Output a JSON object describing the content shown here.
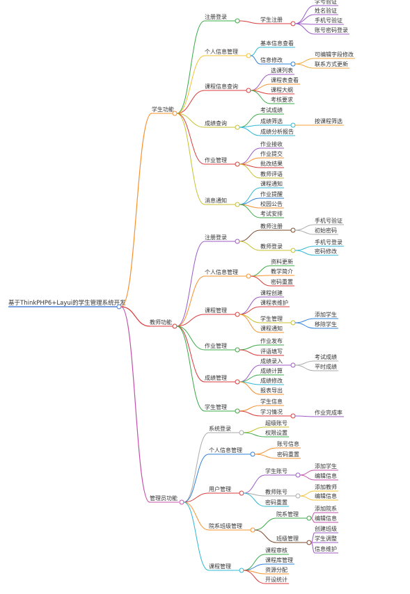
{
  "root": {
    "label": "基于ThinkPHP6+Layui的学生管理系统开发",
    "children": [
      {
        "label": "学生功能",
        "color": "#f7902d",
        "children": [
          {
            "label": "注册登录",
            "color": "#3aa946",
            "children": [
              {
                "label": "学生注册",
                "color": "#d93a3a",
                "children": [
                  {
                    "label": "学号验证",
                    "color": "#9b59c6"
                  },
                  {
                    "label": "姓名验证",
                    "color": "#9b59c6"
                  },
                  {
                    "label": "手机号验证",
                    "color": "#9b59c6"
                  },
                  {
                    "label": "账号密码登录",
                    "color": "#9b59c6"
                  }
                ]
              }
            ]
          },
          {
            "label": "个人信息管理",
            "color": "#f2c12e",
            "children": [
              {
                "label": "基本信息查看",
                "color": "#2fb8d4"
              },
              {
                "label": "信息修改",
                "color": "#2f7fd9",
                "children": [
                  {
                    "label": "可编辑字段修改",
                    "color": "#f2a531"
                  },
                  {
                    "label": "联系方式更新",
                    "color": "#f2a531"
                  }
                ]
              }
            ]
          },
          {
            "label": "课程信息查询",
            "color": "#d93a3a",
            "children": [
              {
                "label": "选课列表",
                "color": "#9b59c6"
              },
              {
                "label": "课程表查看",
                "color": "#f7902d"
              },
              {
                "label": "课程大纲",
                "color": "#d93a3a"
              },
              {
                "label": "考核要求",
                "color": "#3aa946"
              }
            ]
          },
          {
            "label": "成绩查询",
            "color": "#c7c12e",
            "children": [
              {
                "label": "考试成绩",
                "color": "#3aa946"
              },
              {
                "label": "成绩筛选",
                "color": "#2fb8d4",
                "children": [
                  {
                    "label": "按课程筛选",
                    "color": "#f2a531"
                  }
                ]
              },
              {
                "label": "成绩分析报告",
                "color": "#2fb8d4"
              }
            ]
          },
          {
            "label": "作业管理",
            "color": "#d93a3a",
            "children": [
              {
                "label": "作业接收",
                "color": "#9b59c6"
              },
              {
                "label": "作业提交",
                "color": "#f7902d"
              },
              {
                "label": "批改结果",
                "color": "#d93a3a"
              },
              {
                "label": "教师评语",
                "color": "#c7c12e"
              }
            ]
          },
          {
            "label": "消息通知",
            "color": "#c7c12e",
            "children": [
              {
                "label": "课程通知",
                "color": "#2fb8d4"
              },
              {
                "label": "作业提醒",
                "color": "#2f7fd9"
              },
              {
                "label": "校园公告",
                "color": "#f7902d"
              },
              {
                "label": "考试安排",
                "color": "#3aa946"
              }
            ]
          }
        ]
      },
      {
        "label": "教师功能",
        "color": "#d93a3a",
        "children": [
          {
            "label": "注册登录",
            "color": "#9b59c6",
            "children": [
              {
                "label": "教师注册",
                "color": "#7a4a2a",
                "children": [
                  {
                    "label": "手机号验证",
                    "color": "#aaaaaa"
                  },
                  {
                    "label": "初始密码",
                    "color": "#aaaaaa"
                  }
                ]
              },
              {
                "label": "教师登录",
                "color": "#c7c12e",
                "children": [
                  {
                    "label": "手机号登录",
                    "color": "#2fb8d4"
                  },
                  {
                    "label": "密码修改",
                    "color": "#2fb8d4"
                  }
                ]
              }
            ]
          },
          {
            "label": "个人信息管理",
            "color": "#f7902d",
            "children": [
              {
                "label": "资料更新",
                "color": "#3aa946"
              },
              {
                "label": "教学简介",
                "color": "#f7902d"
              },
              {
                "label": "密码重置",
                "color": "#d93a3a"
              }
            ]
          },
          {
            "label": "课程管理",
            "color": "#d93a3a",
            "children": [
              {
                "label": "课程创建",
                "color": "#9b59c6"
              },
              {
                "label": "课程表维护",
                "color": "#d93a3a"
              },
              {
                "label": "学生管理",
                "color": "#c7c12e",
                "children": [
                  {
                    "label": "添加学生",
                    "color": "#2f7fd9"
                  },
                  {
                    "label": "移除学生",
                    "color": "#2f7fd9"
                  }
                ]
              },
              {
                "label": "课程通知",
                "color": "#f7902d"
              }
            ]
          },
          {
            "label": "作业管理",
            "color": "#3aa946",
            "children": [
              {
                "label": "作业发布",
                "color": "#3aa946"
              },
              {
                "label": "评语填写",
                "color": "#d93a3a"
              }
            ]
          },
          {
            "label": "成绩管理",
            "color": "#d93a3a",
            "children": [
              {
                "label": "成绩录入",
                "color": "#9b59c6",
                "children": [
                  {
                    "label": "考试成绩",
                    "color": "#aaaaaa"
                  },
                  {
                    "label": "平时成绩",
                    "color": "#aaaaaa"
                  }
                ]
              },
              {
                "label": "成绩计算",
                "color": "#3aa946"
              },
              {
                "label": "成绩修改",
                "color": "#2fb8d4"
              },
              {
                "label": "报表导出",
                "color": "#f7902d"
              }
            ]
          },
          {
            "label": "学生管理",
            "color": "#3aa946",
            "children": [
              {
                "label": "学生信息",
                "color": "#f7902d"
              },
              {
                "label": "学习情况",
                "color": "#d93a3a",
                "children": [
                  {
                    "label": "作业完成率",
                    "color": "#9b59c6"
                  }
                ]
              }
            ]
          }
        ]
      },
      {
        "label": "管理员功能",
        "color": "#c24fa8",
        "children": [
          {
            "label": "系统登录",
            "color": "#aaaaaa",
            "children": [
              {
                "label": "超级账号",
                "color": "#c7c12e"
              },
              {
                "label": "权限设置",
                "color": "#3aa946"
              }
            ]
          },
          {
            "label": "个人信息管理",
            "color": "#2f7fd9",
            "children": [
              {
                "label": "账号信息",
                "color": "#f7902d"
              },
              {
                "label": "密码重置",
                "color": "#f7902d"
              }
            ]
          },
          {
            "label": "用户管理",
            "color": "#d93a3a",
            "children": [
              {
                "label": "学生账号",
                "color": "#9b59c6",
                "children": [
                  {
                    "label": "添加学生",
                    "color": "#c24fa8"
                  },
                  {
                    "label": "编辑信息",
                    "color": "#c24fa8"
                  }
                ]
              },
              {
                "label": "教师账号",
                "color": "#aaaaaa",
                "children": [
                  {
                    "label": "添加教师",
                    "color": "#f2c12e"
                  },
                  {
                    "label": "编辑信息",
                    "color": "#f2c12e"
                  }
                ]
              },
              {
                "label": "密码重置",
                "color": "#2fb8d4"
              }
            ]
          },
          {
            "label": "院系班级管理",
            "color": "#f7902d",
            "children": [
              {
                "label": "院系管理",
                "color": "#3aa946",
                "children": [
                  {
                    "label": "添加院系",
                    "color": "#c24fa8"
                  },
                  {
                    "label": "编辑信息",
                    "color": "#c24fa8"
                  }
                ]
              },
              {
                "label": "班级管理",
                "color": "#7a4a2a",
                "children": [
                  {
                    "label": "创建班级",
                    "color": "#9b59c6"
                  },
                  {
                    "label": "学生调整",
                    "color": "#9b59c6"
                  },
                  {
                    "label": "信息维护",
                    "color": "#9b59c6"
                  }
                ]
              }
            ]
          },
          {
            "label": "课程管理",
            "color": "#2fb8d4",
            "children": [
              {
                "label": "课程审核",
                "color": "#3aa946"
              },
              {
                "label": "课程库管理",
                "color": "#2f7fd9"
              },
              {
                "label": "资源分配",
                "color": "#f7902d"
              },
              {
                "label": "开设统计",
                "color": "#d93a3a"
              }
            ]
          }
        ]
      }
    ]
  }
}
